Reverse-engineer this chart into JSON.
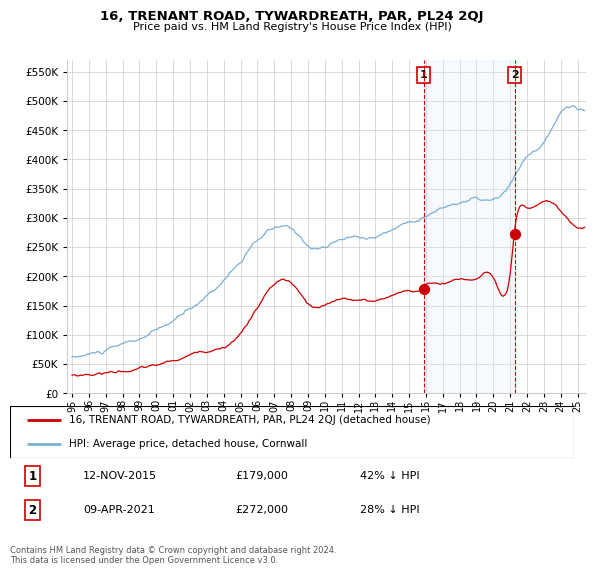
{
  "title": "16, TRENANT ROAD, TYWARDREATH, PAR, PL24 2QJ",
  "subtitle": "Price paid vs. HM Land Registry's House Price Index (HPI)",
  "legend_line1": "16, TRENANT ROAD, TYWARDREATH, PAR, PL24 2QJ (detached house)",
  "legend_line2": "HPI: Average price, detached house, Cornwall",
  "marker1_date": "12-NOV-2015",
  "marker1_price": 179000,
  "marker1_label": "£179,000",
  "marker1_pct": "42% ↓ HPI",
  "marker2_date": "09-APR-2021",
  "marker2_price": 272000,
  "marker2_label": "£272,000",
  "marker2_pct": "28% ↓ HPI",
  "marker1_year": 2015.87,
  "marker2_year": 2021.27,
  "footnote": "Contains HM Land Registry data © Crown copyright and database right 2024.\nThis data is licensed under the Open Government Licence v3.0.",
  "red_color": "#cc0000",
  "blue_color": "#7bafd4",
  "span_color": "#ddeeff",
  "marker_box_color": "#cc0000",
  "background_color": "#ffffff",
  "grid_color": "#cccccc",
  "ylim": [
    0,
    570000
  ],
  "yticks": [
    0,
    50000,
    100000,
    150000,
    200000,
    250000,
    300000,
    350000,
    400000,
    450000,
    500000,
    550000
  ]
}
